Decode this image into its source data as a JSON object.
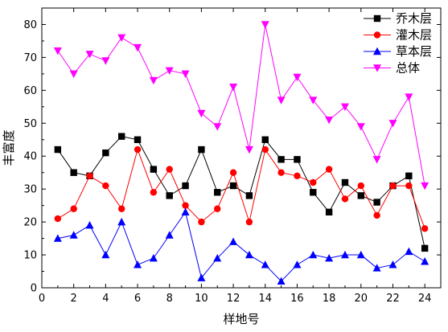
{
  "chart_data": {
    "type": "line",
    "xlabel": "样地号",
    "ylabel": "丰富度",
    "xlim": [
      0,
      25
    ],
    "ylim": [
      0,
      85
    ],
    "x_ticks": [
      0,
      2,
      4,
      6,
      8,
      10,
      12,
      14,
      16,
      18,
      20,
      22,
      24
    ],
    "y_ticks": [
      0,
      10,
      20,
      30,
      40,
      50,
      60,
      70,
      80
    ],
    "grid": false,
    "legend_position": "top-right",
    "x": [
      1,
      2,
      3,
      4,
      5,
      6,
      7,
      8,
      9,
      10,
      11,
      12,
      13,
      14,
      15,
      16,
      17,
      18,
      19,
      20,
      21,
      22,
      23,
      24
    ],
    "series": [
      {
        "name": "乔木层",
        "color": "#000000",
        "marker": "square",
        "values": [
          42,
          35,
          34,
          41,
          46,
          45,
          36,
          28,
          31,
          42,
          29,
          31,
          28,
          45,
          39,
          39,
          29,
          23,
          32,
          28,
          26,
          31,
          34,
          12
        ]
      },
      {
        "name": "灌木层",
        "color": "#ff0000",
        "marker": "circle",
        "values": [
          21,
          24,
          34,
          31,
          24,
          42,
          29,
          36,
          25,
          20,
          24,
          35,
          20,
          42,
          35,
          34,
          32,
          36,
          27,
          31,
          22,
          31,
          31,
          18
        ]
      },
      {
        "name": "草本层",
        "color": "#0000ff",
        "marker": "triangle-up",
        "values": [
          15,
          16,
          19,
          10,
          20,
          7,
          9,
          16,
          23,
          3,
          9,
          14,
          10,
          7,
          2,
          7,
          10,
          9,
          10,
          10,
          6,
          7,
          11,
          8
        ]
      },
      {
        "name": "总体",
        "color": "#ff00ff",
        "marker": "triangle-down",
        "values": [
          72,
          65,
          71,
          69,
          76,
          73,
          63,
          66,
          65,
          53,
          49,
          61,
          42,
          80,
          57,
          64,
          57,
          51,
          55,
          49,
          39,
          50,
          58,
          31
        ]
      }
    ]
  }
}
